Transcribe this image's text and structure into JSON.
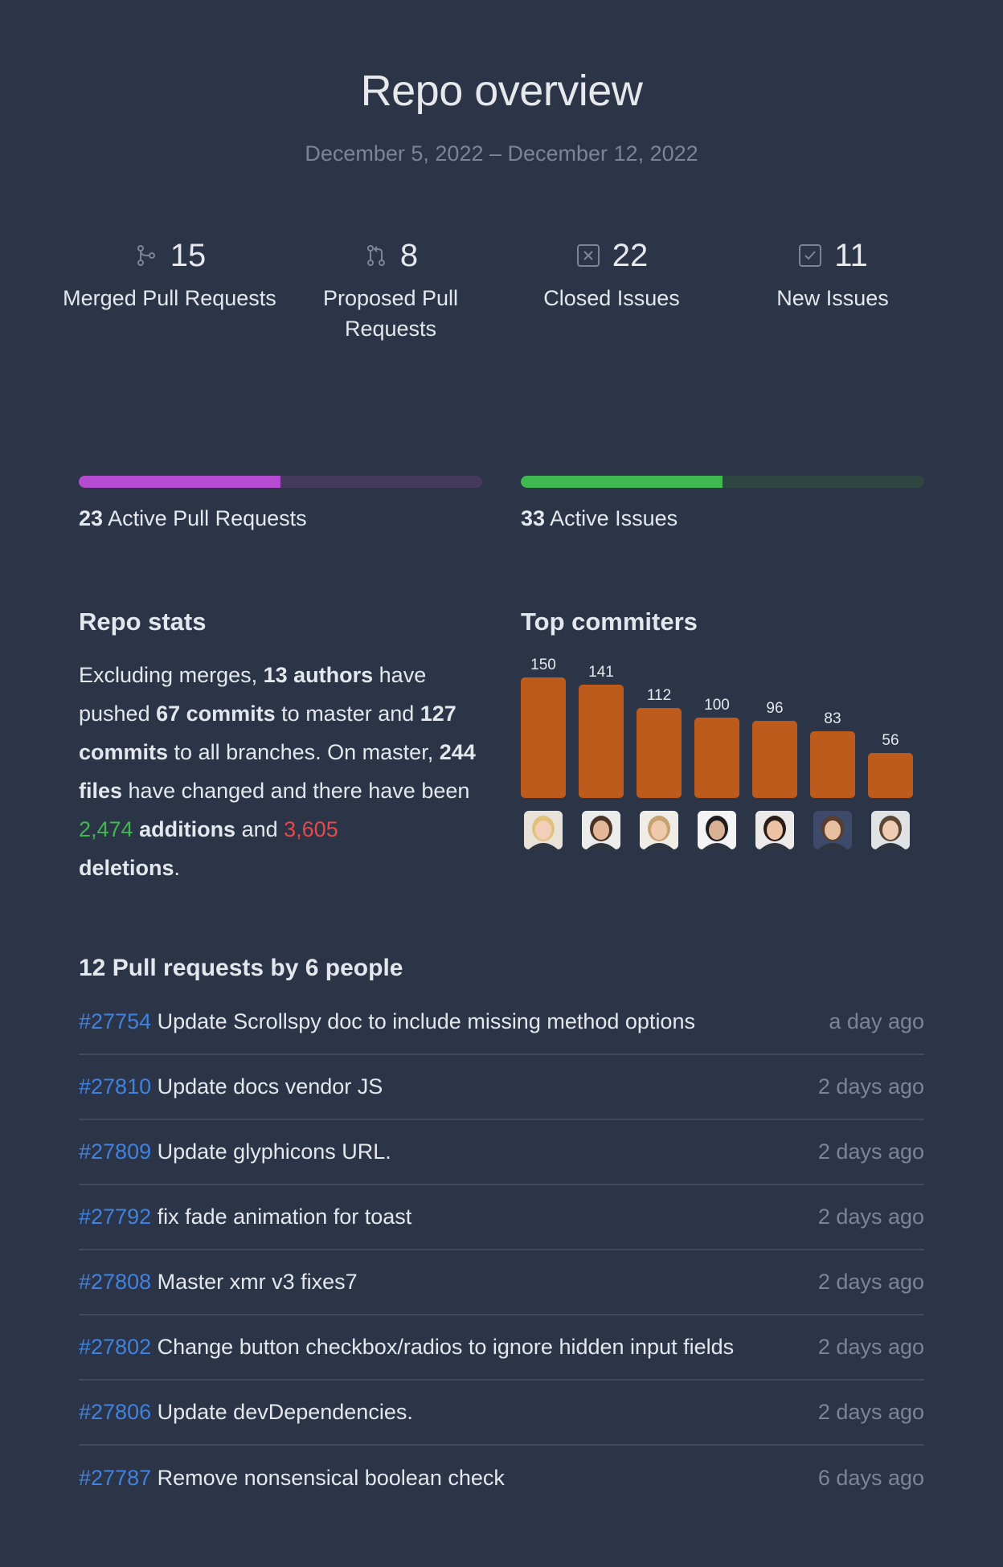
{
  "header": {
    "title": "Repo overview",
    "date_range": "December 5, 2022 – December 12, 2022"
  },
  "stats": [
    {
      "icon": "merge-icon",
      "value": "15",
      "label": "Merged Pull Requests"
    },
    {
      "icon": "pull-request-icon",
      "value": "8",
      "label": "Proposed Pull Requests"
    },
    {
      "icon": "closed-issue-icon",
      "value": "22",
      "label": "Closed Issues"
    },
    {
      "icon": "new-issue-icon",
      "value": "11",
      "label": "New Issues"
    }
  ],
  "progress": {
    "pull_requests": {
      "count": "23",
      "label": "Active Pull Requests",
      "fraction": 0.5,
      "color": "#b54bd1",
      "track": "#443a5c"
    },
    "issues": {
      "count": "33",
      "label": "Active Issues",
      "fraction": 0.5,
      "color": "#3fb950",
      "track": "#2f4540"
    }
  },
  "repo_stats": {
    "heading": "Repo stats",
    "p1": "Excluding merges, ",
    "authors": "13 authors",
    "p2": " have pushed ",
    "commits_master": "67 commits",
    "p3": " to master and ",
    "commits_all": "127 commits",
    "p4": " to all branches. On master, ",
    "files": "244 files",
    "p5": " have changed and there have been ",
    "additions_num": "2,474",
    "additions_word": " additions",
    "p6": " and ",
    "deletions_num": "3,605",
    "deletions_word": "deletions",
    "p7": "."
  },
  "top_committers": {
    "heading": "Top commiters",
    "bar_color": "#bd5b1c"
  },
  "chart_data": {
    "type": "bar",
    "title": "Top commiters",
    "values": [
      150,
      141,
      112,
      100,
      96,
      83,
      56
    ],
    "ylim": [
      0,
      150
    ],
    "grid": false
  },
  "pull_requests": {
    "heading": "12 Pull requests by 6 people",
    "items": [
      {
        "number": "#27754",
        "title": "Update Scrollspy doc to include missing method options",
        "time": "a day ago"
      },
      {
        "number": "#27810",
        "title": "Update docs vendor JS",
        "time": "2 days ago"
      },
      {
        "number": "#27809",
        "title": "Update glyphicons URL.",
        "time": "2 days ago"
      },
      {
        "number": "#27792",
        "title": "fix fade animation for toast",
        "time": "2 days ago"
      },
      {
        "number": "#27808",
        "title": "Master xmr v3 fixes7",
        "time": "2 days ago"
      },
      {
        "number": "#27802",
        "title": "Change button checkbox/radios to ignore hidden input fields",
        "time": "2 days ago"
      },
      {
        "number": "#27806",
        "title": "Update devDependencies.",
        "time": "2 days ago"
      },
      {
        "number": "#27787",
        "title": "Remove nonsensical boolean check",
        "time": "6 days ago"
      }
    ]
  }
}
